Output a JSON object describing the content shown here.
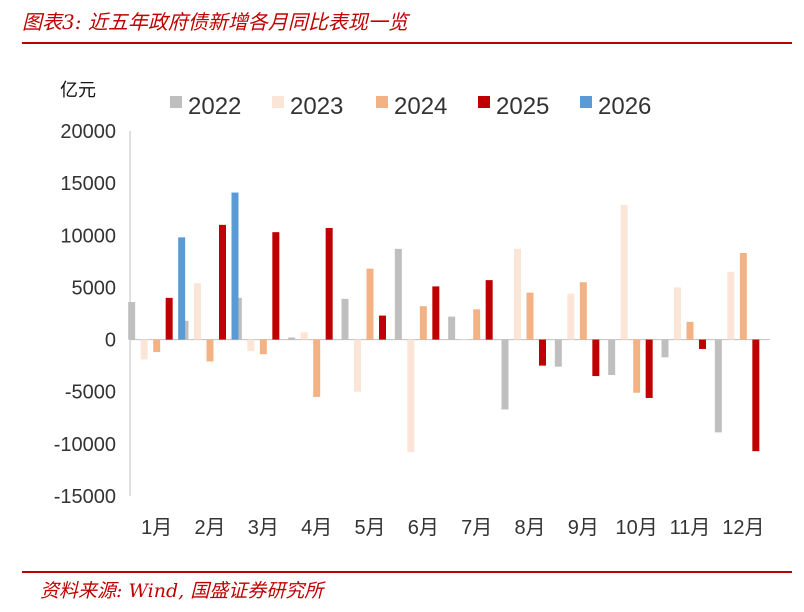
{
  "header": {
    "title": "图表3:  近五年政府债新增各月同比表现一览"
  },
  "footer": {
    "source": "资料来源:  Wind,  国盛证券研究所"
  },
  "colors": {
    "accent": "#c00000",
    "2022": "#bfbfbf",
    "2023": "#fbe5d6",
    "2024": "#f4b183",
    "2025": "#c00000",
    "2026": "#5b9bd5"
  },
  "chart_data": {
    "type": "bar",
    "y_unit": "亿元",
    "ylim": [
      -15000,
      20000
    ],
    "yticks": [
      20000,
      15000,
      10000,
      5000,
      0,
      -5000,
      -10000,
      -15000
    ],
    "categories": [
      "1月",
      "2月",
      "3月",
      "4月",
      "5月",
      "6月",
      "7月",
      "8月",
      "9月",
      "10月",
      "11月",
      "12月"
    ],
    "legend_position": "top",
    "grid": false,
    "series": [
      {
        "name": "2022",
        "color": "#bfbfbf",
        "values": [
          3600,
          1800,
          4000,
          200,
          3900,
          8700,
          2200,
          -6700,
          -2600,
          -3400,
          -1700,
          -8900
        ]
      },
      {
        "name": "2023",
        "color": "#fbe5d6",
        "values": [
          -1900,
          5400,
          -1100,
          700,
          -5000,
          -10800,
          0,
          8700,
          4400,
          12900,
          5000,
          6500
        ]
      },
      {
        "name": "2024",
        "color": "#f4b183",
        "values": [
          -1200,
          -2100,
          -1400,
          -5500,
          6800,
          3200,
          2900,
          4500,
          5500,
          -5100,
          1700,
          8300
        ]
      },
      {
        "name": "2025",
        "color": "#c00000",
        "values": [
          4000,
          11000,
          10300,
          10700,
          2300,
          5100,
          5700,
          -2500,
          -3500,
          -5600,
          -900,
          -10700
        ]
      },
      {
        "name": "2026",
        "color": "#5b9bd5",
        "values": [
          9800,
          14100,
          null,
          null,
          null,
          null,
          null,
          null,
          null,
          null,
          null,
          null
        ]
      }
    ]
  }
}
